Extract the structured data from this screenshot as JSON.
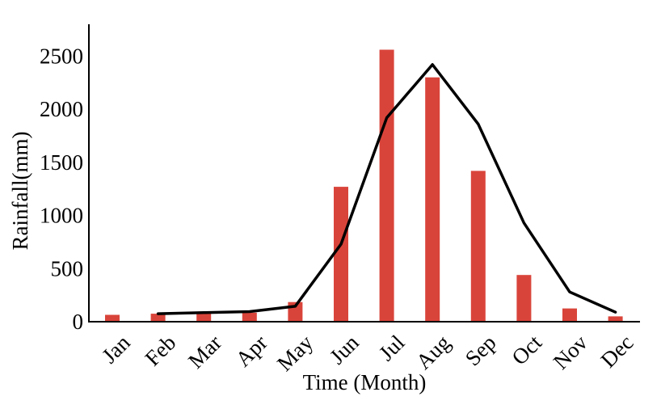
{
  "chart_data": {
    "type": "bar",
    "categories": [
      "Jan",
      "Feb",
      "Mar",
      "Apr",
      "May",
      "Jun",
      "Jul",
      "Aug",
      "Sep",
      "Oct",
      "Nov",
      "Dec"
    ],
    "series": [
      {
        "type": "bar",
        "values": [
          65,
          75,
          85,
          85,
          185,
          1270,
          2560,
          2300,
          1420,
          440,
          125,
          50
        ],
        "color": "#d9443a"
      },
      {
        "type": "line",
        "x": [
          "Feb",
          "Mar",
          "Apr",
          "May",
          "Jun",
          "Jul",
          "Aug",
          "Sep",
          "Oct",
          "Nov",
          "Dec"
        ],
        "values": [
          75,
          85,
          95,
          145,
          730,
          1920,
          2420,
          1860,
          930,
          280,
          90
        ],
        "color": "#000000"
      }
    ],
    "title": "",
    "xlabel": "Time (Month)",
    "ylabel": "Rainfall(mm)",
    "ylim": [
      0,
      2800
    ],
    "yticks": [
      0,
      500,
      1000,
      1500,
      2000,
      2500
    ],
    "grid": false,
    "legend": "none"
  }
}
